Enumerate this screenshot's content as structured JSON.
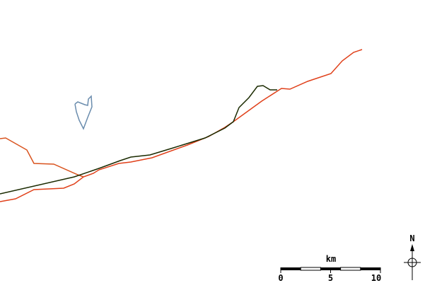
{
  "map": {
    "colors": {
      "background": "#ffffff",
      "road_primary": "#1a2a00",
      "road_secondary": "#e0401a",
      "road_tertiary": "#d9531e",
      "lake_outline": "#6a8cad"
    },
    "features": [
      "road-primary",
      "road-secondary",
      "road-tertiary",
      "lake"
    ]
  },
  "scale_bar": {
    "unit": "km",
    "ticks": [
      "0",
      "5",
      "10"
    ]
  },
  "north_arrow": {
    "label": "N",
    "icon": "compass-north-arrow-icon"
  }
}
